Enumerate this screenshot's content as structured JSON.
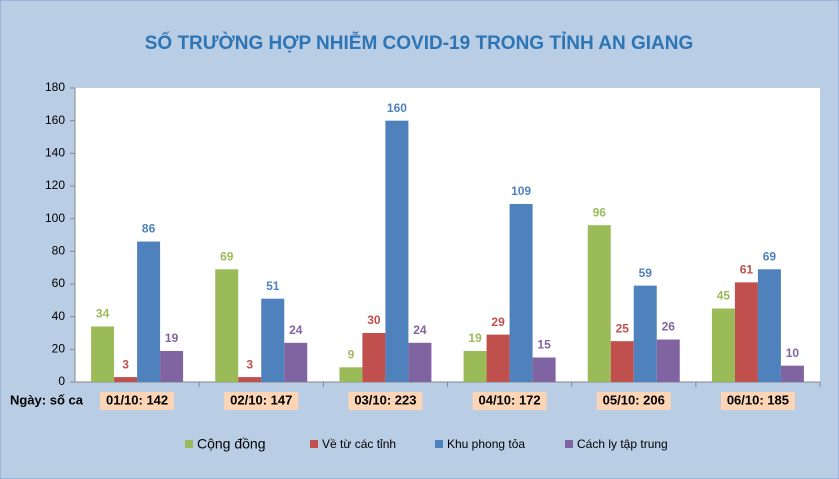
{
  "chart_data": {
    "type": "bar",
    "title": "SỐ TRƯỜNG HỢP NHIỄM COVID-19 TRONG TỈNH AN GIANG",
    "x_label": "Ngày: số ca",
    "categories": [
      "01/10: 142",
      "02/10: 147",
      "03/10: 223",
      "04/10: 172",
      "05/10: 206",
      "06/10: 185"
    ],
    "series": [
      {
        "name": "Cộng đồng",
        "color": "#9bbb59",
        "values": [
          34,
          69,
          9,
          19,
          96,
          45
        ]
      },
      {
        "name": "Về từ các tỉnh",
        "color": "#c0504d",
        "values": [
          3,
          3,
          30,
          29,
          25,
          61
        ]
      },
      {
        "name": "Khu phong tỏa",
        "color": "#4f81bd",
        "values": [
          86,
          51,
          160,
          109,
          59,
          69
        ]
      },
      {
        "name": "Cách ly tập trung",
        "color": "#8064a2",
        "values": [
          19,
          24,
          24,
          15,
          26,
          10
        ]
      }
    ],
    "ylim": [
      0,
      180
    ],
    "yticks": [
      0,
      20,
      40,
      60,
      80,
      100,
      120,
      140,
      160,
      180
    ],
    "legend": "bottom"
  }
}
